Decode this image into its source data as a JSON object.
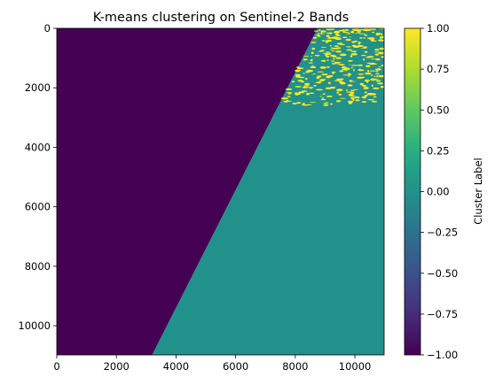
{
  "chart_data": {
    "type": "heatmap",
    "title": "K-means clustering on Sentinel-2 Bands",
    "xlabel": "",
    "ylabel": "",
    "xlim": [
      0,
      10980
    ],
    "ylim": [
      10980,
      0
    ],
    "x_ticks": [
      "0",
      "2000",
      "4000",
      "6000",
      "8000",
      "10000"
    ],
    "y_ticks": [
      "0",
      "2000",
      "4000",
      "6000",
      "8000",
      "10000"
    ],
    "x_tick_values": [
      0,
      2000,
      4000,
      6000,
      8000,
      10000
    ],
    "y_tick_values": [
      0,
      2000,
      4000,
      6000,
      8000,
      10000
    ],
    "colorbar": {
      "label": "Cluster Label",
      "range": [
        -1.0,
        1.0
      ],
      "ticks": [
        "1.00",
        "0.75",
        "0.50",
        "0.25",
        "0.00",
        "−0.25",
        "−0.50",
        "−0.75",
        "−1.00"
      ],
      "tick_values": [
        1.0,
        0.75,
        0.5,
        0.25,
        0.0,
        -0.25,
        -0.5,
        -0.75,
        -1.0
      ],
      "colormap": "viridis"
    },
    "regions": [
      {
        "label": -1,
        "color": "#440154",
        "description_boundary": [
          [
            0,
            0
          ],
          [
            8750,
            0
          ],
          [
            3200,
            10980
          ],
          [
            0,
            10980
          ]
        ]
      },
      {
        "label": 0,
        "color": "#21918c",
        "description_boundary": [
          [
            8750,
            0
          ],
          [
            10980,
            0
          ],
          [
            10980,
            10980
          ],
          [
            3200,
            10980
          ]
        ]
      }
    ],
    "speckle": {
      "label": 1,
      "color": "#fde725",
      "x_range": [
        7600,
        10980
      ],
      "y_range": [
        0,
        2600
      ]
    }
  }
}
